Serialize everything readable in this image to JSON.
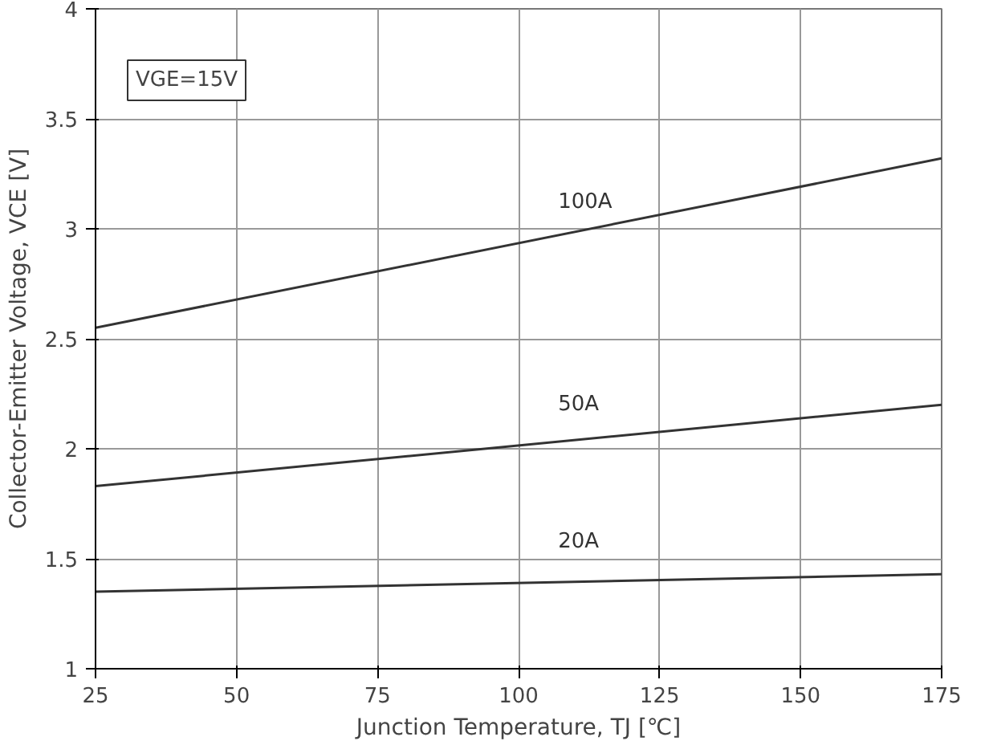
{
  "chart_data": {
    "type": "line",
    "xlabel": "Junction Temperature, TJ [℃]",
    "ylabel": "Collector-Emitter Voltage, VCE [V]",
    "annotations": [
      "VGE=15V"
    ],
    "x": [
      25,
      175
    ],
    "series": [
      {
        "name": "100A",
        "color": "#333333",
        "values": [
          2.55,
          3.32
        ]
      },
      {
        "name": "50A",
        "color": "#333333",
        "values": [
          1.83,
          2.2
        ]
      },
      {
        "name": "20A",
        "color": "#333333",
        "values": [
          1.35,
          1.43
        ]
      }
    ],
    "xlim": [
      25,
      175
    ],
    "ylim": [
      1,
      4
    ],
    "xticks": [
      25,
      50,
      75,
      100,
      125,
      150,
      175
    ],
    "yticks": [
      1,
      1.5,
      2,
      2.5,
      3,
      3.5,
      4
    ],
    "grid": true,
    "marker": "none",
    "line_style": "solid"
  }
}
